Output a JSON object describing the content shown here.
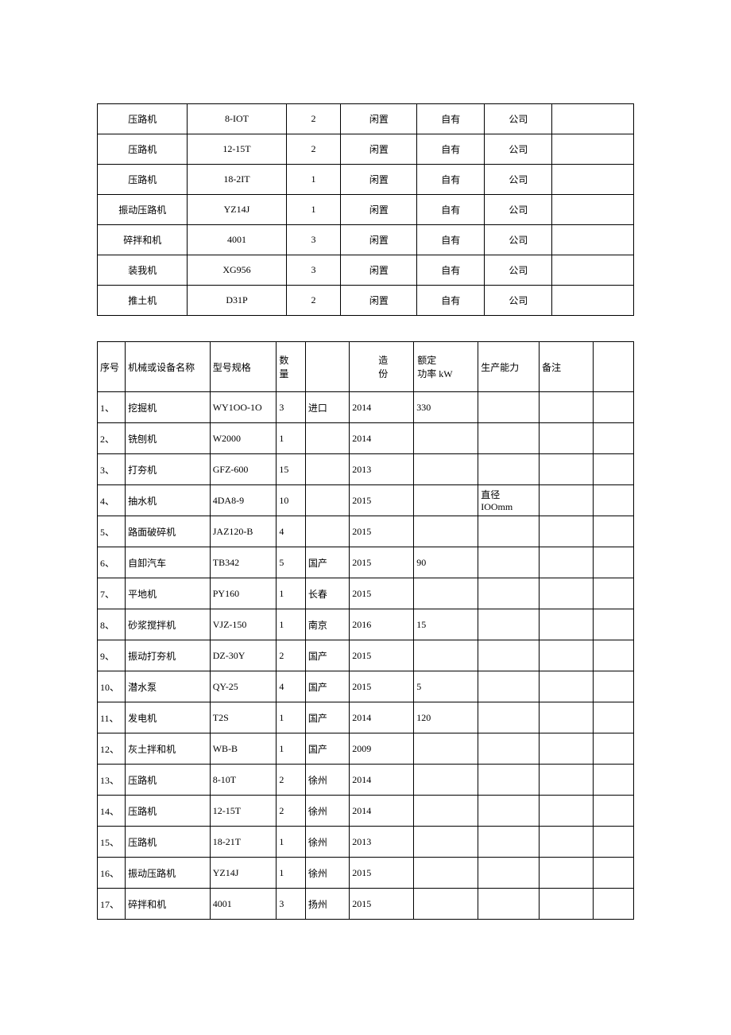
{
  "table1": {
    "rows": [
      {
        "name": "压路机",
        "model": "8-IOT",
        "qty": "2",
        "status": "闲置",
        "own": "自有",
        "loc": "公司",
        "note": ""
      },
      {
        "name": "压路机",
        "model": "12-15T",
        "qty": "2",
        "status": "闲置",
        "own": "自有",
        "loc": "公司",
        "note": ""
      },
      {
        "name": "压路机",
        "model": "18-2IT",
        "qty": "1",
        "status": "闲置",
        "own": "自有",
        "loc": "公司",
        "note": ""
      },
      {
        "name": "振动压路机",
        "model": "YZ14J",
        "qty": "1",
        "status": "闲置",
        "own": "自有",
        "loc": "公司",
        "note": ""
      },
      {
        "name": "碎拌和机",
        "model": "4001",
        "qty": "3",
        "status": "闲置",
        "own": "自有",
        "loc": "公司",
        "note": ""
      },
      {
        "name": "装我机",
        "model": "XG956",
        "qty": "3",
        "status": "闲置",
        "own": "自有",
        "loc": "公司",
        "note": ""
      },
      {
        "name": "推土机",
        "model": "D31P",
        "qty": "2",
        "status": "闲置",
        "own": "自有",
        "loc": "公司",
        "note": ""
      }
    ]
  },
  "table2": {
    "headers": {
      "seq": "序号",
      "name": "机械或设备名称",
      "model": "型号规格",
      "qty": "数\n量",
      "origin": "",
      "year": "造\n份",
      "power": "额定\n功率 kW",
      "capacity": "生产能力",
      "note": "备注"
    },
    "rows": [
      {
        "seq": "1、",
        "name": "挖掘机",
        "model": "WY1OO-1O",
        "qty": "3",
        "qtyBold": false,
        "origin": "进口",
        "year": "2014",
        "power": "330",
        "capacity": "",
        "note": ""
      },
      {
        "seq": "2、",
        "name": "铣刨机",
        "model": "W2000",
        "qty": "1",
        "qtyBold": true,
        "origin": "",
        "year": "2014",
        "power": "",
        "capacity": "",
        "note": ""
      },
      {
        "seq": "3、",
        "name": "打夯机",
        "model": "GFZ-600",
        "qty": "15",
        "qtyBold": false,
        "origin": "",
        "year": "2013",
        "power": "",
        "capacity": "",
        "note": ""
      },
      {
        "seq": "4、",
        "name": "抽水机",
        "model": "4DA8-9",
        "qty": "10",
        "qtyBold": false,
        "origin": "",
        "year": "2015",
        "power": "",
        "capacity": "直径\nIOOmm",
        "note": ""
      },
      {
        "seq": "5、",
        "name": "路面破碎机",
        "model": "JAZ120-B",
        "qty": "4",
        "qtyBold": false,
        "origin": "",
        "year": "2015",
        "power": "",
        "capacity": "",
        "note": ""
      },
      {
        "seq": "6、",
        "name": "自卸汽车",
        "model": "TB342",
        "qty": "5",
        "qtyBold": false,
        "origin": "国产",
        "year": "2015",
        "power": "90",
        "capacity": "",
        "note": ""
      },
      {
        "seq": "7、",
        "name": "平地机",
        "model": "PY160",
        "qty": "1",
        "qtyBold": true,
        "origin": "长春",
        "year": "2015",
        "power": "",
        "capacity": "",
        "note": ""
      },
      {
        "seq": "8、",
        "name": "砂浆搅拌机",
        "model": "VJZ-150",
        "qty": "1",
        "qtyBold": true,
        "origin": "南京",
        "year": "2016",
        "power": "15",
        "capacity": "",
        "note": ""
      },
      {
        "seq": "9、",
        "name": "振动打夯机",
        "model": "DZ-30Y",
        "qty": "2",
        "qtyBold": false,
        "origin": "国产",
        "year": "2015",
        "power": "",
        "capacity": "",
        "note": ""
      },
      {
        "seq": "10、",
        "name": "潜水泵",
        "model": "QY-25",
        "qty": "4",
        "qtyBold": false,
        "origin": "国产",
        "year": "2015",
        "power": "5",
        "capacity": "",
        "note": ""
      },
      {
        "seq": "11、",
        "name": "发电机",
        "model": "T2S",
        "qty": "1",
        "qtyBold": true,
        "origin": "国产",
        "year": "2014",
        "power": "120",
        "capacity": "",
        "note": ""
      },
      {
        "seq": "12、",
        "name": "灰土拌和机",
        "model": "WB-B",
        "qty": "1",
        "qtyBold": true,
        "origin": "国产",
        "year": "2009",
        "power": "",
        "capacity": "",
        "note": ""
      },
      {
        "seq": "13、",
        "name": "压路机",
        "model": "8-10T",
        "qty": "2",
        "qtyBold": false,
        "origin": "徐州",
        "year": "2014",
        "power": "",
        "capacity": "",
        "note": ""
      },
      {
        "seq": "14、",
        "name": "压路机",
        "model": "12-15T",
        "qty": "2",
        "qtyBold": false,
        "origin": "徐州",
        "year": "2014",
        "power": "",
        "capacity": "",
        "note": ""
      },
      {
        "seq": "15、",
        "name": "压路机",
        "model": "18-21T",
        "qty": "1",
        "qtyBold": true,
        "origin": "徐州",
        "year": "2013",
        "power": "",
        "capacity": "",
        "note": ""
      },
      {
        "seq": "16、",
        "name": "振动压路机",
        "model": "YZ14J",
        "qty": "1",
        "qtyBold": true,
        "origin": "徐州",
        "year": "2015",
        "power": "",
        "capacity": "",
        "note": ""
      },
      {
        "seq": "17、",
        "name": "碎拌和机",
        "model": "4001",
        "qty": "3",
        "qtyBold": false,
        "origin": "扬州",
        "year": "2015",
        "power": "",
        "capacity": "",
        "note": ""
      }
    ]
  }
}
